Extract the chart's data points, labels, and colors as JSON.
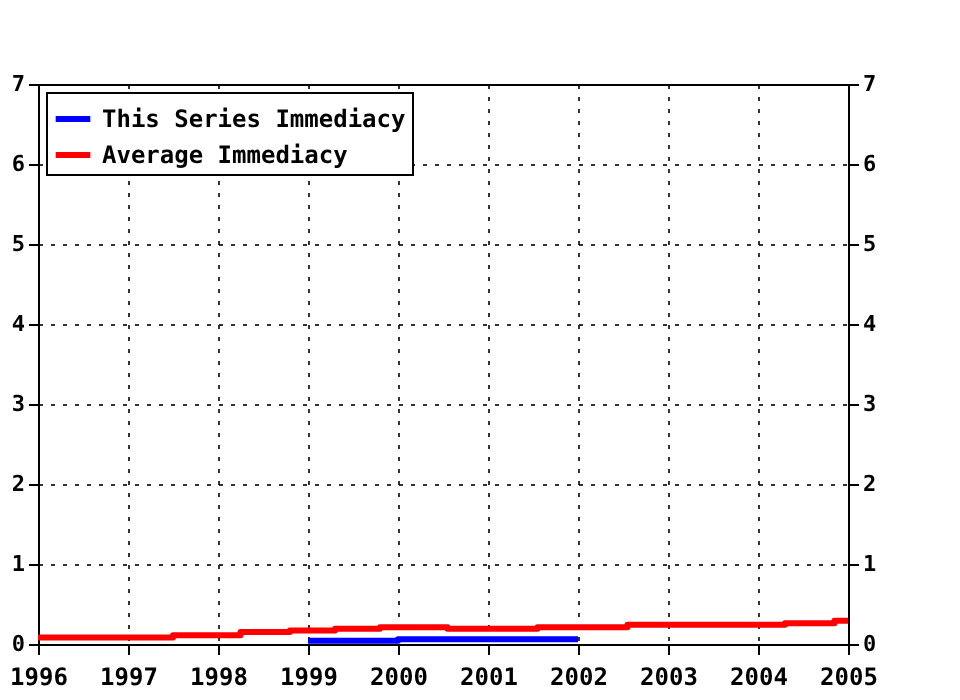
{
  "chart_data": {
    "type": "step",
    "xlim": [
      1996,
      2005
    ],
    "xticks": [
      1996,
      1997,
      1998,
      1999,
      2000,
      2001,
      2002,
      2003,
      2004,
      2005
    ],
    "ylim": [
      0,
      7
    ],
    "yticks": [
      0,
      1,
      2,
      3,
      4,
      5,
      6,
      7
    ],
    "y2lim": [
      0,
      7
    ],
    "y2ticks": [
      0,
      1,
      2,
      3,
      4,
      5,
      6,
      7
    ],
    "grid": true,
    "legend": "top left",
    "line_style": "solid",
    "series": [
      {
        "name": "This Series Immediacy",
        "color": "#0000ff",
        "x": [
          1999,
          2000,
          2002
        ],
        "values": [
          0.04,
          0.06,
          0.06
        ]
      },
      {
        "name": "Average Immediacy",
        "color": "#ff0000",
        "x": [
          1996,
          1997.5,
          1998.25,
          1998.8,
          1999.3,
          1999.8,
          2000.55,
          2001.55,
          2002.55,
          2004.3,
          2004.85,
          2005
        ],
        "values": [
          0.08,
          0.11,
          0.15,
          0.17,
          0.19,
          0.21,
          0.19,
          0.21,
          0.24,
          0.26,
          0.29,
          0.29
        ]
      }
    ]
  }
}
